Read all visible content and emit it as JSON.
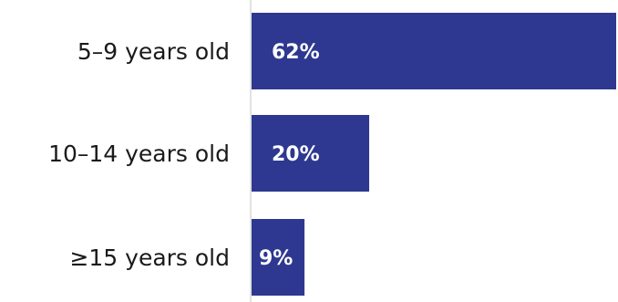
{
  "chart_data": {
    "type": "bar",
    "orientation": "horizontal",
    "categories": [
      "5–9 years old",
      "10–14 years old",
      "≥15 years old"
    ],
    "values": [
      62,
      20,
      9
    ],
    "value_labels": [
      "62%",
      "20%",
      "9%"
    ],
    "unit": "%",
    "xlim": [
      0,
      62
    ],
    "grid": false,
    "legend": "none",
    "bar_color": "#2e3890",
    "axis_color": "#d9d9d9"
  }
}
